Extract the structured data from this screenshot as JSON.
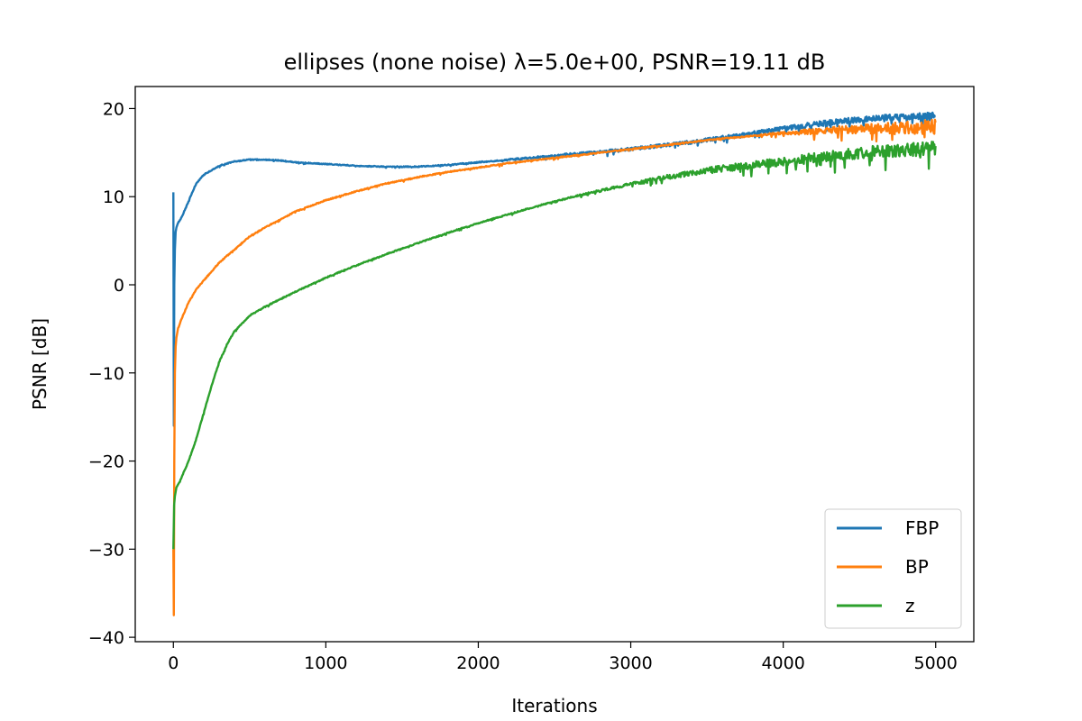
{
  "chart_data": {
    "type": "line",
    "title": "ellipses (none noise) λ=5.0e+00, PSNR=19.11 dB",
    "xlabel": "Iterations",
    "ylabel": "PSNR [dB]",
    "xlim": [
      -250,
      5250
    ],
    "ylim": [
      -40.5,
      22.5
    ],
    "xticks": [
      0,
      1000,
      2000,
      3000,
      4000,
      5000
    ],
    "yticks": [
      -40,
      -30,
      -20,
      -10,
      0,
      10,
      20
    ],
    "xtick_labels": [
      "0",
      "1000",
      "2000",
      "3000",
      "4000",
      "5000"
    ],
    "ytick_labels": [
      "−40",
      "−30",
      "−20",
      "−10",
      "0",
      "10",
      "20"
    ],
    "grid": false,
    "legend_position": "lower-right",
    "series": [
      {
        "name": "FBP",
        "color": "#1f77b4",
        "x": [
          0,
          3,
          6,
          10,
          15,
          20,
          30,
          50,
          75,
          100,
          150,
          200,
          300,
          400,
          500,
          600,
          700,
          800,
          1000,
          1200,
          1400,
          1600,
          1800,
          2000,
          2200,
          2400,
          2600,
          2800,
          3000,
          3200,
          3400,
          3600,
          3800,
          4000,
          4200,
          4400,
          4600,
          4800,
          5000
        ],
        "y": [
          10.5,
          -16,
          0,
          4,
          6,
          6.5,
          7,
          7.5,
          8.5,
          9.5,
          11.5,
          12.5,
          13.5,
          14,
          14.2,
          14.2,
          14.1,
          13.9,
          13.7,
          13.5,
          13.4,
          13.4,
          13.6,
          13.9,
          14.2,
          14.5,
          14.8,
          15.1,
          15.4,
          15.8,
          16.2,
          16.7,
          17.2,
          17.7,
          18.2,
          18.6,
          18.9,
          19.1,
          19.2
        ],
        "noise_from": 1900,
        "noise_amplitude": 0.6
      },
      {
        "name": "BP",
        "color": "#ff7f0e",
        "x": [
          0,
          3,
          6,
          10,
          15,
          20,
          30,
          50,
          75,
          100,
          150,
          200,
          300,
          400,
          500,
          600,
          800,
          1000,
          1200,
          1400,
          1600,
          1800,
          2000,
          2200,
          2400,
          2600,
          2800,
          3000,
          3200,
          3400,
          3600,
          3800,
          4000,
          4200,
          4400,
          4600,
          4800,
          5000
        ],
        "y": [
          -30,
          -37.5,
          -20,
          -10,
          -7,
          -6,
          -5,
          -4,
          -3,
          -2,
          -0.5,
          0.5,
          2.5,
          4,
          5.5,
          6.5,
          8.3,
          9.6,
          10.6,
          11.5,
          12.2,
          12.8,
          13.3,
          13.8,
          14.2,
          14.6,
          15.0,
          15.4,
          15.8,
          16.2,
          16.6,
          16.9,
          17.2,
          17.4,
          17.6,
          17.7,
          17.8,
          17.9
        ],
        "noise_from": 3800,
        "noise_amplitude": 1.6
      },
      {
        "name": "z",
        "color": "#2ca02c",
        "x": [
          0,
          5,
          10,
          20,
          50,
          100,
          150,
          200,
          250,
          300,
          350,
          400,
          500,
          600,
          800,
          1000,
          1200,
          1400,
          1600,
          1800,
          2000,
          2200,
          2400,
          2600,
          2800,
          3000,
          3200,
          3400,
          3600,
          3800,
          4000,
          4200,
          4400,
          4600,
          4800,
          5000
        ],
        "y": [
          -30,
          -25,
          -24,
          -23,
          -22,
          -20,
          -17.5,
          -14.5,
          -11.5,
          -8.8,
          -6.8,
          -5.3,
          -3.5,
          -2.5,
          -0.8,
          0.8,
          2.2,
          3.5,
          4.7,
          5.9,
          7.0,
          8.0,
          9.0,
          9.9,
          10.7,
          11.4,
          12.1,
          12.7,
          13.2,
          13.6,
          14.0,
          14.4,
          14.8,
          15.1,
          15.3,
          15.5
        ],
        "noise_from": 2600,
        "noise_amplitude": 1.5
      }
    ]
  }
}
